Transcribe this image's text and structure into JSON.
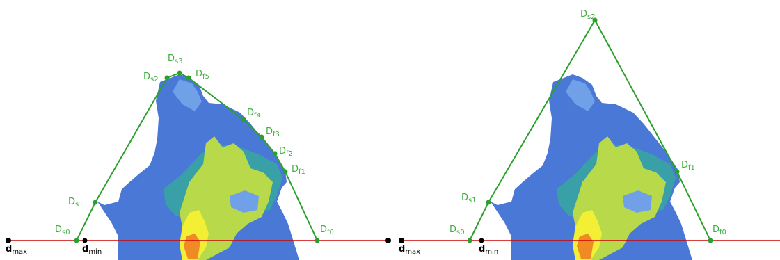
{
  "colors": {
    "hull": "#2ca02c",
    "label": "#3fae3f",
    "baseline": "#cc0000",
    "marker_black": "#000000",
    "blob_blue": "#4a78d6",
    "blob_light": "#6fa0e8",
    "blob_teal": "#3aa0a8",
    "blob_green": "#b7d94a",
    "blob_yellow": "#f2ef35",
    "blob_orange": "#f08a24"
  },
  "left_panel": {
    "points": {
      "Ds0": {
        "letter": "D",
        "sub": "s0"
      },
      "Ds1": {
        "letter": "D",
        "sub": "s1"
      },
      "Ds2": {
        "letter": "D",
        "sub": "s2"
      },
      "Ds3": {
        "letter": "D",
        "sub": "s3"
      },
      "Df5": {
        "letter": "D",
        "sub": "f5"
      },
      "Df4": {
        "letter": "D",
        "sub": "f4"
      },
      "Df3": {
        "letter": "D",
        "sub": "f3"
      },
      "Df2": {
        "letter": "D",
        "sub": "f2"
      },
      "Df1": {
        "letter": "D",
        "sub": "f1"
      },
      "Df0": {
        "letter": "D",
        "sub": "f0"
      }
    },
    "dmax": {
      "letter": "d",
      "sub": "max"
    },
    "dmin": {
      "letter": "d",
      "sub": "min"
    }
  },
  "right_panel": {
    "points": {
      "Ds0": {
        "letter": "D",
        "sub": "s0"
      },
      "Ds1": {
        "letter": "D",
        "sub": "s1"
      },
      "Ds2": {
        "letter": "D",
        "sub": "s2"
      },
      "Df1": {
        "letter": "D",
        "sub": "f1"
      },
      "Df0": {
        "letter": "D",
        "sub": "f0"
      }
    },
    "dmax": {
      "letter": "d",
      "sub": "max"
    },
    "dmin": {
      "letter": "d",
      "sub": "min"
    }
  }
}
